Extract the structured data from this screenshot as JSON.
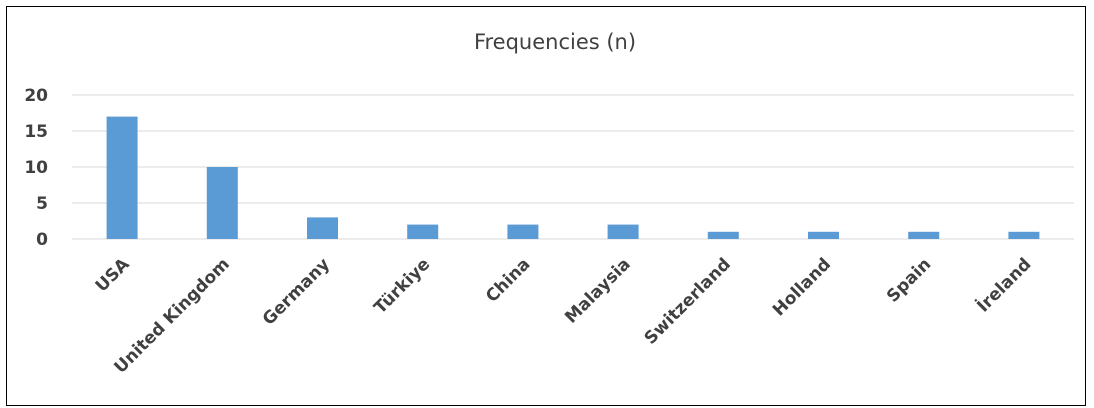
{
  "chart_data": {
    "type": "bar",
    "title": "Frequencies  (n)",
    "categories": [
      "USA",
      "United Kingdom",
      "Germany",
      "Türkiye",
      "China",
      "Malaysia",
      "Switzerland",
      "Holland",
      "Spain",
      "İreland"
    ],
    "values": [
      17,
      10,
      3,
      2,
      2,
      2,
      1,
      1,
      1,
      1
    ],
    "yticks": [
      "0",
      "5",
      "10",
      "15",
      "20"
    ],
    "ylim": [
      0,
      20
    ],
    "grid": true,
    "legend": "none",
    "colors": {
      "bar": "#5b9bd5",
      "grid": "#d9d9d9",
      "text": "#404040"
    }
  }
}
